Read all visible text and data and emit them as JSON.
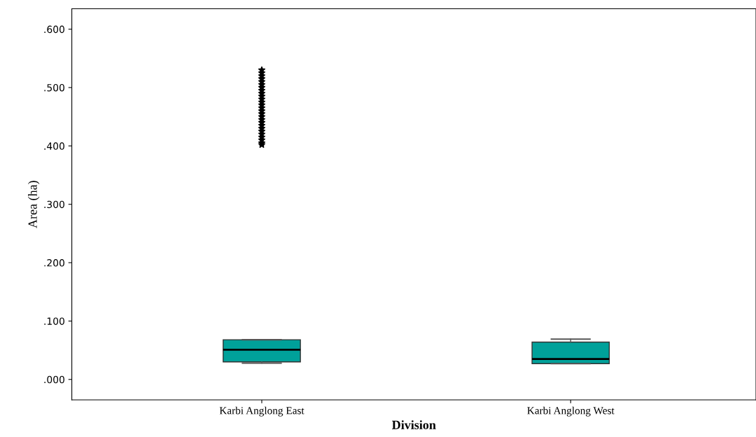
{
  "chart_data": {
    "type": "box",
    "xlabel": "Division",
    "ylabel": "Area (ha)",
    "categories": [
      "Karbi Anglong East",
      "Karbi Anglong West"
    ],
    "boxes": [
      {
        "low": 0.028,
        "q1": 0.03,
        "median": 0.051,
        "q3": 0.068,
        "high": 0.068,
        "outliers": [
          0.402,
          0.405,
          0.41,
          0.415,
          0.42,
          0.425,
          0.43,
          0.435,
          0.44,
          0.445,
          0.45,
          0.455,
          0.46,
          0.465,
          0.47,
          0.475,
          0.48,
          0.485,
          0.49,
          0.495,
          0.5,
          0.505,
          0.51,
          0.515,
          0.52,
          0.525,
          0.53
        ]
      },
      {
        "low": 0.027,
        "q1": 0.027,
        "median": 0.035,
        "q3": 0.064,
        "high": 0.069
      }
    ],
    "color": "#00a19a",
    "marker": "star",
    "ylim": [
      -0.035,
      0.635
    ],
    "yticks": [
      {
        "value": 0,
        "label": ".000"
      },
      {
        "value": 0.1,
        "label": ".100"
      },
      {
        "value": 0.2,
        "label": ".200"
      },
      {
        "value": 0.3,
        "label": ".300"
      },
      {
        "value": 0.4,
        "label": ".400"
      },
      {
        "value": 0.5,
        "label": ".500"
      },
      {
        "value": 0.6,
        "label": ".600"
      }
    ],
    "grid": false
  }
}
